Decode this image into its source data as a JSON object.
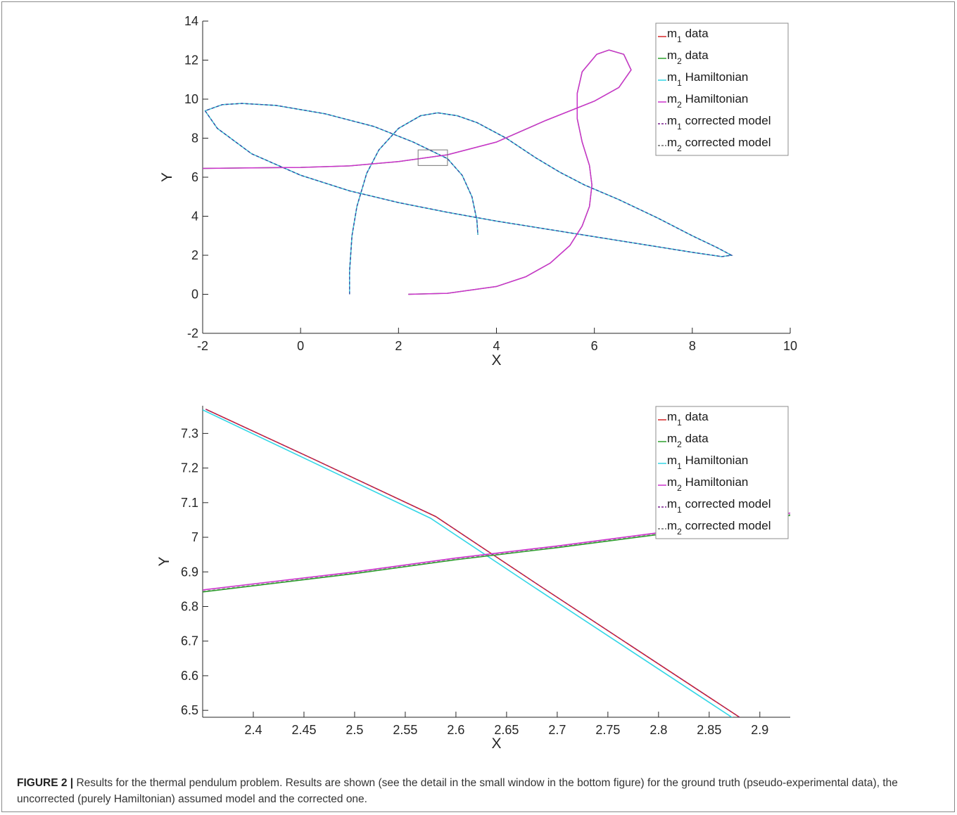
{
  "figure": {
    "label": "FIGURE 2 |",
    "caption": "Results for the thermal pendulum problem. Results are shown (see the detail in the small window in the bottom figure) for the ground truth (pseudo-experimental data), the uncorrected (purely Hamiltonian) assumed model and the corrected one."
  },
  "colors": {
    "m1_data": "#d62728",
    "m2_data": "#2ca02c",
    "m1_hamiltonian": "#33d6e6",
    "m2_hamiltonian": "#cc33cc",
    "m1_corrected": "#7a1f8f",
    "m2_corrected": "#6e6e6e",
    "axis": "#262626"
  },
  "chart_data": [
    {
      "type": "line",
      "xlabel": "X",
      "ylabel": "Y",
      "xlim": [
        -2,
        10
      ],
      "ylim": [
        -2,
        14
      ],
      "xticks": [
        "-2",
        "0",
        "2",
        "4",
        "6",
        "8",
        "10"
      ],
      "yticks": [
        "-2",
        "0",
        "2",
        "4",
        "6",
        "8",
        "10",
        "12",
        "14"
      ],
      "legend_position": "top-right",
      "legend": [
        {
          "base": "m",
          "sub": "1",
          "text": "data",
          "key": "m1_data",
          "style": "solid"
        },
        {
          "base": "m",
          "sub": "2",
          "text": "data",
          "key": "m2_data",
          "style": "solid"
        },
        {
          "base": "m",
          "sub": "1",
          "text": "Hamiltonian",
          "key": "m1_hamiltonian",
          "style": "solid"
        },
        {
          "base": "m",
          "sub": "2",
          "text": "Hamiltonian",
          "key": "m2_hamiltonian",
          "style": "solid"
        },
        {
          "base": "m",
          "sub": "1",
          "text": "corrected model",
          "key": "m1_corrected",
          "style": "dashed"
        },
        {
          "base": "m",
          "sub": "2",
          "text": "corrected model",
          "key": "m2_corrected",
          "style": "dashed"
        }
      ],
      "zoom_box": {
        "x": [
          2.4,
          3.0
        ],
        "y": [
          6.6,
          7.4
        ]
      },
      "series": [
        {
          "key": "m1_trajectory",
          "points": [
            [
              1.0,
              0.0
            ],
            [
              1.0,
              1.2
            ],
            [
              1.05,
              3.0
            ],
            [
              1.15,
              4.5
            ],
            [
              1.35,
              6.2
            ],
            [
              1.6,
              7.4
            ],
            [
              2.0,
              8.5
            ],
            [
              2.45,
              9.15
            ],
            [
              2.8,
              9.3
            ],
            [
              3.2,
              9.15
            ],
            [
              3.6,
              8.8
            ],
            [
              4.2,
              8.0
            ],
            [
              4.8,
              7.0
            ],
            [
              5.3,
              6.25
            ],
            [
              5.8,
              5.6
            ],
            [
              6.5,
              4.85
            ],
            [
              7.3,
              3.9
            ],
            [
              8.0,
              3.0
            ],
            [
              8.5,
              2.4
            ],
            [
              8.8,
              2.0
            ],
            [
              8.6,
              1.93
            ],
            [
              8.0,
              2.15
            ],
            [
              7.0,
              2.55
            ],
            [
              5.5,
              3.15
            ],
            [
              4.0,
              3.75
            ],
            [
              3.0,
              4.2
            ],
            [
              2.0,
              4.7
            ],
            [
              1.0,
              5.3
            ],
            [
              0.0,
              6.1
            ],
            [
              -1.0,
              7.2
            ],
            [
              -1.7,
              8.5
            ],
            [
              -1.95,
              9.4
            ],
            [
              -1.6,
              9.72
            ],
            [
              -1.2,
              9.78
            ],
            [
              -0.5,
              9.68
            ],
            [
              0.5,
              9.25
            ],
            [
              1.5,
              8.6
            ],
            [
              2.3,
              7.8
            ],
            [
              3.0,
              6.95
            ],
            [
              3.3,
              6.1
            ],
            [
              3.5,
              5.0
            ],
            [
              3.6,
              3.8
            ],
            [
              3.62,
              3.05
            ]
          ]
        },
        {
          "key": "m2_trajectory",
          "points": [
            [
              2.2,
              0.0
            ],
            [
              3.0,
              0.05
            ],
            [
              4.0,
              0.4
            ],
            [
              4.6,
              0.9
            ],
            [
              5.1,
              1.6
            ],
            [
              5.5,
              2.5
            ],
            [
              5.75,
              3.5
            ],
            [
              5.9,
              4.5
            ],
            [
              5.95,
              5.6
            ],
            [
              5.9,
              6.6
            ],
            [
              5.75,
              7.8
            ],
            [
              5.65,
              9.0
            ],
            [
              5.65,
              10.3
            ],
            [
              5.75,
              11.4
            ],
            [
              6.05,
              12.3
            ],
            [
              6.3,
              12.52
            ],
            [
              6.6,
              12.3
            ],
            [
              6.75,
              11.5
            ],
            [
              6.5,
              10.6
            ],
            [
              6.0,
              9.9
            ],
            [
              5.0,
              8.9
            ],
            [
              4.0,
              7.8
            ],
            [
              3.0,
              7.15
            ],
            [
              2.0,
              6.8
            ],
            [
              1.0,
              6.58
            ],
            [
              0.0,
              6.5
            ],
            [
              -1.0,
              6.48
            ],
            [
              -2.0,
              6.45
            ]
          ]
        }
      ]
    },
    {
      "type": "line",
      "xlabel": "X",
      "ylabel": "Y",
      "xlim": [
        2.35,
        2.93
      ],
      "ylim": [
        6.48,
        7.38
      ],
      "xticks": [
        "2.4",
        "2.45",
        "2.5",
        "2.55",
        "2.6",
        "2.65",
        "2.7",
        "2.75",
        "2.8",
        "2.85",
        "2.9"
      ],
      "yticks": [
        "6.5",
        "6.6",
        "6.7",
        "6.8",
        "6.9",
        "7",
        "7.1",
        "7.2",
        "7.3"
      ],
      "legend_position": "top-right",
      "legend": [
        {
          "base": "m",
          "sub": "1",
          "text": "data",
          "key": "m1_data",
          "style": "solid"
        },
        {
          "base": "m",
          "sub": "2",
          "text": "data",
          "key": "m2_data",
          "style": "solid"
        },
        {
          "base": "m",
          "sub": "1",
          "text": "Hamiltonian",
          "key": "m1_hamiltonian",
          "style": "solid"
        },
        {
          "base": "m",
          "sub": "2",
          "text": "Hamiltonian",
          "key": "m2_hamiltonian",
          "style": "solid"
        },
        {
          "base": "m",
          "sub": "1",
          "text": "corrected model",
          "key": "m1_corrected",
          "style": "dashed"
        },
        {
          "base": "m",
          "sub": "2",
          "text": "corrected model",
          "key": "m2_corrected",
          "style": "dashed"
        }
      ],
      "series": [
        {
          "key": "m1_data",
          "points": [
            [
              2.353,
              7.37
            ],
            [
              2.46,
              7.225
            ],
            [
              2.58,
              7.06
            ],
            [
              2.68,
              6.865
            ],
            [
              2.88,
              6.48
            ]
          ]
        },
        {
          "key": "m1_hamiltonian",
          "points": [
            [
              2.35,
              7.368
            ],
            [
              2.455,
              7.222
            ],
            [
              2.575,
              7.055
            ],
            [
              2.675,
              6.86
            ],
            [
              2.875,
              6.475
            ]
          ]
        },
        {
          "key": "m1_corrected",
          "points": [
            [
              2.353,
              7.37
            ],
            [
              2.46,
              7.225
            ],
            [
              2.58,
              7.06
            ],
            [
              2.68,
              6.865
            ],
            [
              2.88,
              6.48
            ]
          ]
        },
        {
          "key": "m2_data",
          "points": [
            [
              2.35,
              6.842
            ],
            [
              2.5,
              6.895
            ],
            [
              2.6,
              6.935
            ],
            [
              2.7,
              6.97
            ],
            [
              2.8,
              7.008
            ],
            [
              2.93,
              7.063
            ]
          ]
        },
        {
          "key": "m2_hamiltonian",
          "points": [
            [
              2.35,
              6.848
            ],
            [
              2.5,
              6.9
            ],
            [
              2.6,
              6.94
            ],
            [
              2.7,
              6.975
            ],
            [
              2.8,
              7.013
            ],
            [
              2.93,
              7.07
            ]
          ]
        },
        {
          "key": "m2_corrected",
          "points": [
            [
              2.35,
              6.844
            ],
            [
              2.5,
              6.897
            ],
            [
              2.6,
              6.937
            ],
            [
              2.7,
              6.972
            ],
            [
              2.8,
              7.01
            ],
            [
              2.93,
              7.066
            ]
          ]
        }
      ]
    }
  ]
}
